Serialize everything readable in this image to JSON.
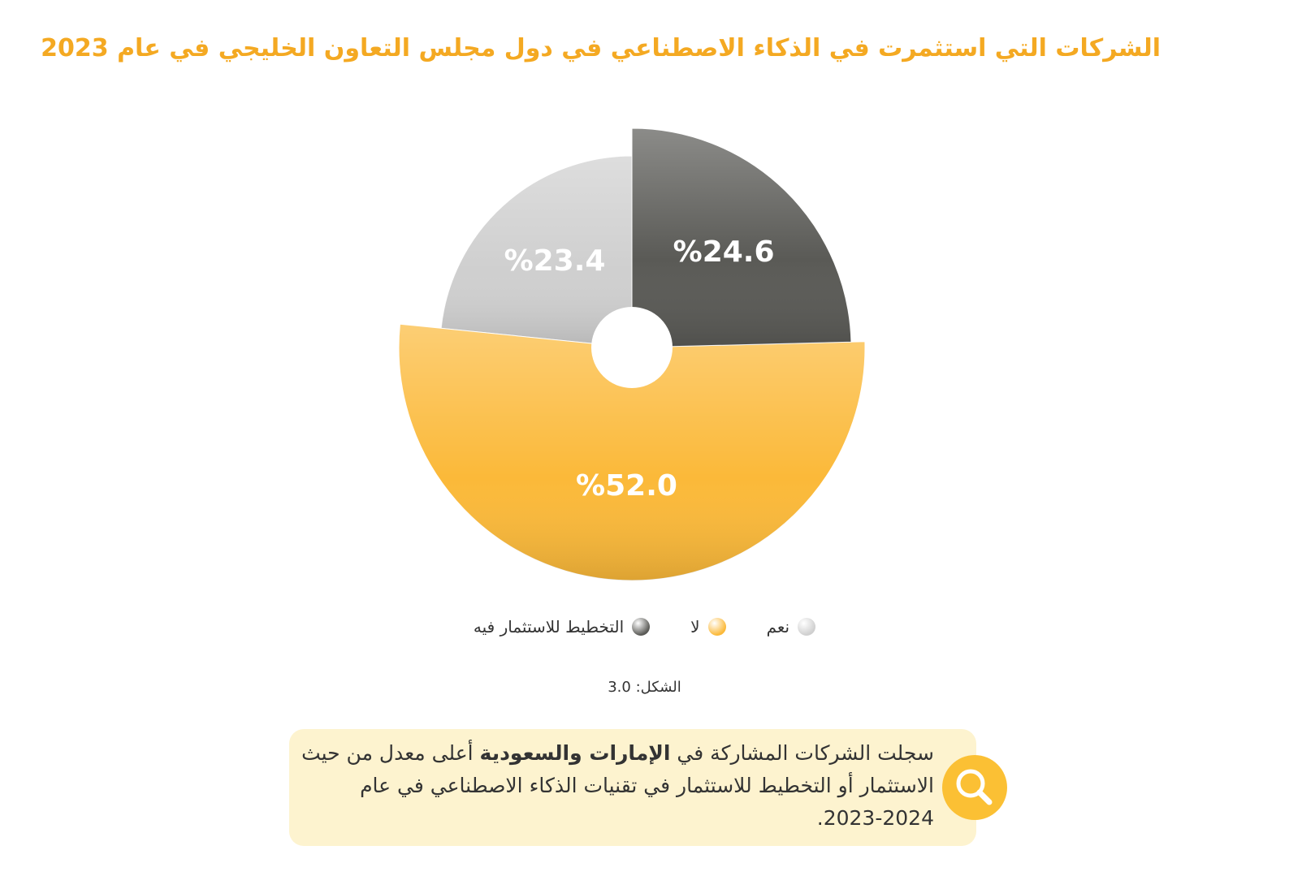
{
  "chart_data": {
    "type": "pie",
    "title": "الشركات التي استثمرت في الذكاء الاصطناعي في دول مجلس التعاون الخليجي في عام 2023",
    "categories": [
      "نعم",
      "لا",
      "التخطيط للاستثمار فيه"
    ],
    "values": [
      23.4,
      52.0,
      24.6
    ],
    "value_labels": [
      "%23.4",
      "%52.0",
      "%24.6"
    ],
    "colors": [
      "#cfcfcf",
      "#fbb939",
      "#5a5a56"
    ],
    "legend": "bottom"
  },
  "caption": "الشكل: 3.0",
  "callout": {
    "parts": [
      "سجلت الشركات المشاركة في ",
      "الإمارات والسعودية",
      " أعلى معدل من حيث الاستثمار أو التخطيط للاستثمار في تقنيات الذكاء الاصطناعي في عام 2024-2023."
    ]
  }
}
